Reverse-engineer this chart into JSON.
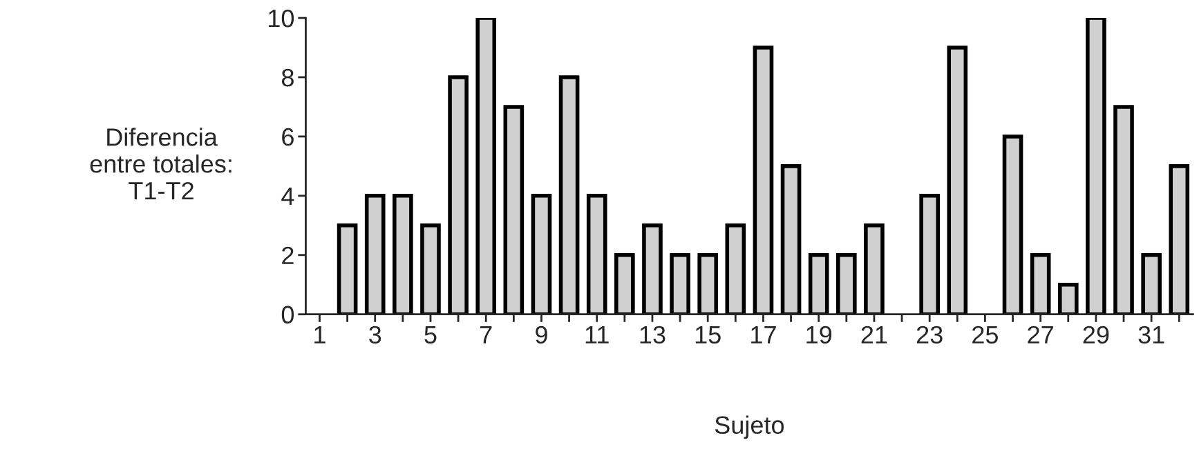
{
  "chart_data": {
    "type": "bar",
    "xlabel": "Sujeto",
    "ylabel": "Diferencia\nentre totales:\nT1-T2",
    "categories": [
      "1",
      null,
      "3",
      null,
      "5",
      null,
      "7",
      null,
      "9",
      null,
      "11",
      null,
      "13",
      null,
      "15",
      null,
      "17",
      null,
      "19",
      null,
      "21",
      null,
      "23",
      null,
      "25",
      null,
      "27",
      null,
      "29",
      null,
      "31",
      null
    ],
    "values": [
      null,
      3,
      4,
      4,
      3,
      8,
      10,
      7,
      4,
      8,
      4,
      2,
      3,
      2,
      2,
      3,
      9,
      5,
      2,
      2,
      3,
      null,
      4,
      9,
      null,
      6,
      2,
      1,
      10,
      7,
      2,
      5
    ],
    "color": "#d0d0d0",
    "ylim": [
      0,
      10
    ],
    "yticks": [
      0,
      2,
      4,
      6,
      8,
      10
    ],
    "grid": false,
    "legend": false
  }
}
